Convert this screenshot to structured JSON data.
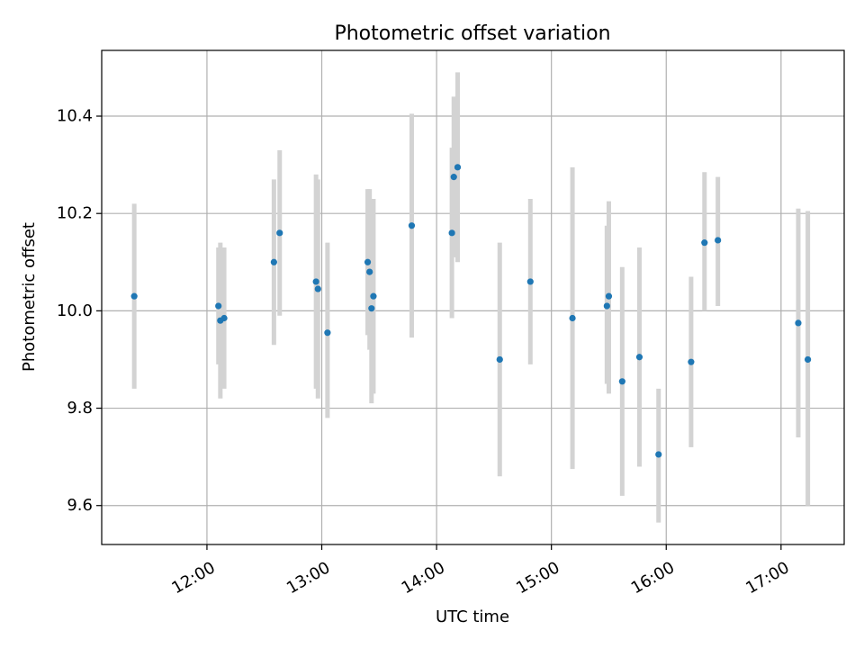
{
  "chart_data": {
    "type": "scatter",
    "title": "Photometric offset variation",
    "xlabel": "UTC time",
    "ylabel": "Photometric offset",
    "xlim": [
      "11:05",
      "17:33"
    ],
    "ylim": [
      9.52,
      10.535
    ],
    "grid": true,
    "x_ticks": [
      "12:00",
      "13:00",
      "14:00",
      "15:00",
      "16:00",
      "17:00"
    ],
    "y_ticks": [
      9.6,
      9.8,
      10.0,
      10.2,
      10.4
    ],
    "y_tick_labels": [
      "9.6",
      "9.8",
      "10.0",
      "10.2",
      "10.4"
    ],
    "colors": {
      "point": "#1f77b4",
      "errorbar": "#d3d3d3",
      "grid": "#b0b0b0"
    },
    "series": [
      {
        "points": [
          {
            "x": "11:22",
            "y": 10.03,
            "ylo": 9.84,
            "yhi": 10.22
          },
          {
            "x": "12:06",
            "y": 10.01,
            "ylo": 9.89,
            "yhi": 10.13
          },
          {
            "x": "12:07",
            "y": 9.98,
            "ylo": 9.82,
            "yhi": 10.14
          },
          {
            "x": "12:09",
            "y": 9.985,
            "ylo": 9.84,
            "yhi": 10.13
          },
          {
            "x": "12:35",
            "y": 10.1,
            "ylo": 9.93,
            "yhi": 10.27
          },
          {
            "x": "12:38",
            "y": 10.16,
            "ylo": 9.99,
            "yhi": 10.33
          },
          {
            "x": "12:57",
            "y": 10.06,
            "ylo": 9.84,
            "yhi": 10.28
          },
          {
            "x": "12:58",
            "y": 10.045,
            "ylo": 9.82,
            "yhi": 10.27
          },
          {
            "x": "13:03",
            "y": 9.955,
            "ylo": 9.78,
            "yhi": 10.14
          },
          {
            "x": "13:24",
            "y": 10.1,
            "ylo": 9.95,
            "yhi": 10.25
          },
          {
            "x": "13:25",
            "y": 10.08,
            "ylo": 9.92,
            "yhi": 10.25
          },
          {
            "x": "13:26",
            "y": 10.005,
            "ylo": 9.81,
            "yhi": 10.2
          },
          {
            "x": "13:27",
            "y": 10.03,
            "ylo": 9.83,
            "yhi": 10.23
          },
          {
            "x": "13:47",
            "y": 10.175,
            "ylo": 9.945,
            "yhi": 10.405
          },
          {
            "x": "14:08",
            "y": 10.16,
            "ylo": 9.985,
            "yhi": 10.335
          },
          {
            "x": "14:09",
            "y": 10.275,
            "ylo": 10.11,
            "yhi": 10.44
          },
          {
            "x": "14:11",
            "y": 10.295,
            "ylo": 10.1,
            "yhi": 10.49
          },
          {
            "x": "14:33",
            "y": 9.9,
            "ylo": 9.66,
            "yhi": 10.14
          },
          {
            "x": "14:49",
            "y": 10.06,
            "ylo": 9.89,
            "yhi": 10.23
          },
          {
            "x": "15:11",
            "y": 9.985,
            "ylo": 9.675,
            "yhi": 10.295
          },
          {
            "x": "15:29",
            "y": 10.01,
            "ylo": 9.85,
            "yhi": 10.175
          },
          {
            "x": "15:30",
            "y": 10.03,
            "ylo": 9.83,
            "yhi": 10.225
          },
          {
            "x": "15:37",
            "y": 9.855,
            "ylo": 9.62,
            "yhi": 10.09
          },
          {
            "x": "15:46",
            "y": 9.905,
            "ylo": 9.68,
            "yhi": 10.13
          },
          {
            "x": "15:56",
            "y": 9.705,
            "ylo": 9.565,
            "yhi": 9.84
          },
          {
            "x": "16:13",
            "y": 9.895,
            "ylo": 9.72,
            "yhi": 10.07
          },
          {
            "x": "16:20",
            "y": 10.14,
            "ylo": 10.0,
            "yhi": 10.285
          },
          {
            "x": "16:27",
            "y": 10.145,
            "ylo": 10.01,
            "yhi": 10.275
          },
          {
            "x": "17:09",
            "y": 9.975,
            "ylo": 9.74,
            "yhi": 10.21
          },
          {
            "x": "17:14",
            "y": 9.9,
            "ylo": 9.6,
            "yhi": 10.205
          }
        ]
      }
    ]
  }
}
